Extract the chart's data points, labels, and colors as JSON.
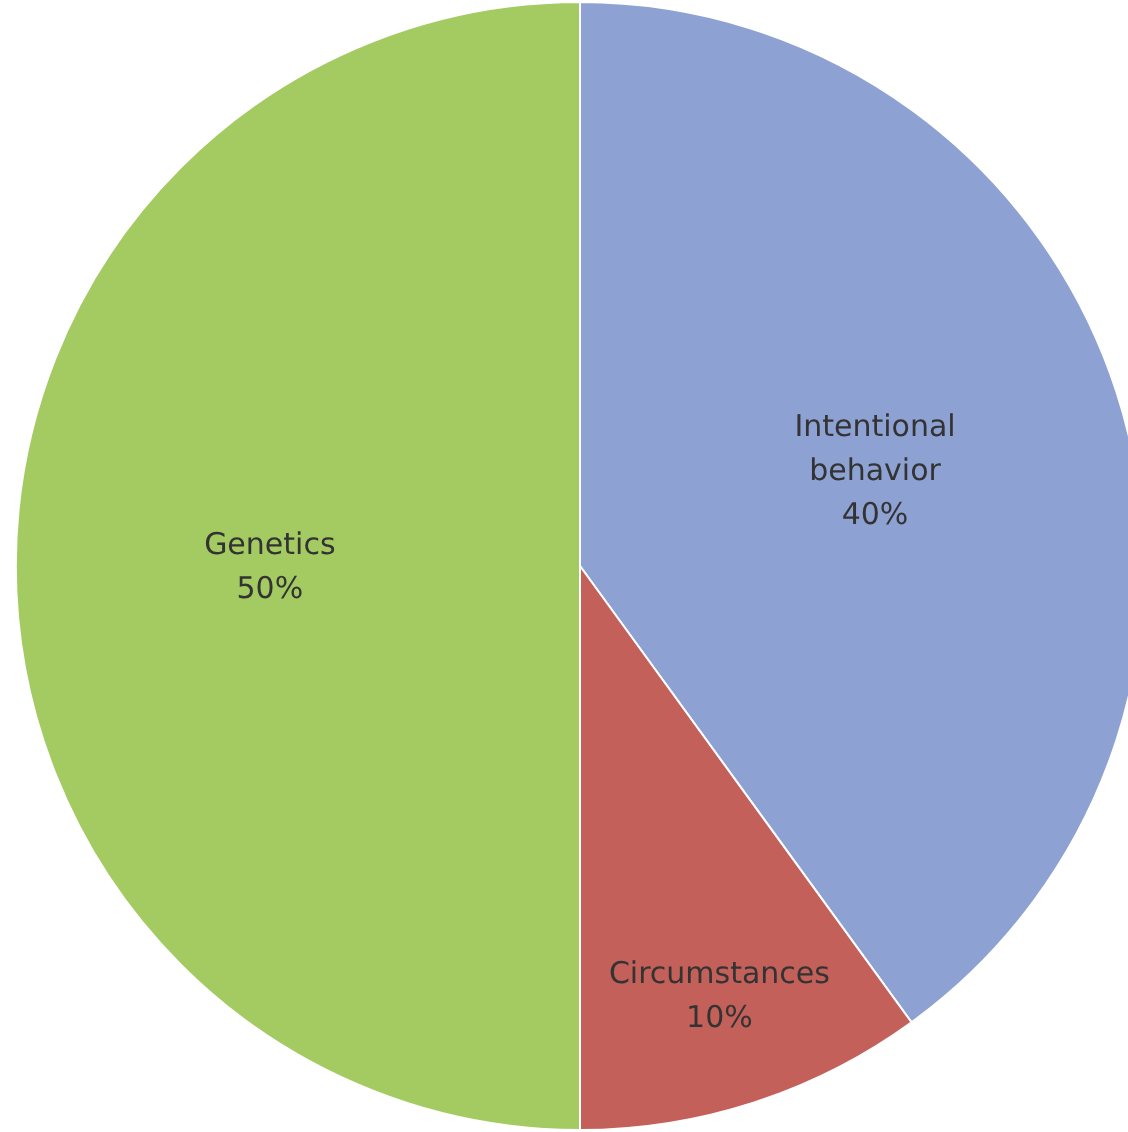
{
  "chart_data": {
    "type": "pie",
    "categories": [
      "Intentional behavior",
      "Circumstances",
      "Genetics"
    ],
    "values": [
      40,
      10,
      50
    ],
    "value_labels": [
      "40%",
      "10%",
      "50%"
    ],
    "colors": [
      "#8ea1d3",
      "#c4605a",
      "#a3cb62"
    ]
  }
}
